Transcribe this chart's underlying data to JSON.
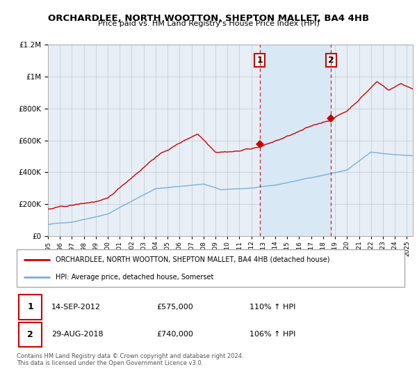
{
  "title": "ORCHARDLEE, NORTH WOOTTON, SHEPTON MALLET, BA4 4HB",
  "subtitle": "Price paid vs. HM Land Registry's House Price Index (HPI)",
  "legend_line1": "ORCHARDLEE, NORTH WOOTTON, SHEPTON MALLET, BA4 4HB (detached house)",
  "legend_line2": "HPI: Average price, detached house, Somerset",
  "marker1_date": "14-SEP-2012",
  "marker1_price": 575000,
  "marker1_label": "110% ↑ HPI",
  "marker2_date": "29-AUG-2018",
  "marker2_price": 740000,
  "marker2_label": "106% ↑ HPI",
  "footnote": "Contains HM Land Registry data © Crown copyright and database right 2024.\nThis data is licensed under the Open Government Licence v3.0.",
  "red_color": "#cc0000",
  "blue_color": "#7ab0d4",
  "shading_color": "#d8e8f5",
  "background_color": "#e8eef5",
  "grid_color": "#c0c8d0",
  "marker1_x": 2012.71,
  "marker2_x": 2018.66,
  "ylim_max": 1200000,
  "xlim_start": 1995,
  "xlim_end": 2025.5
}
